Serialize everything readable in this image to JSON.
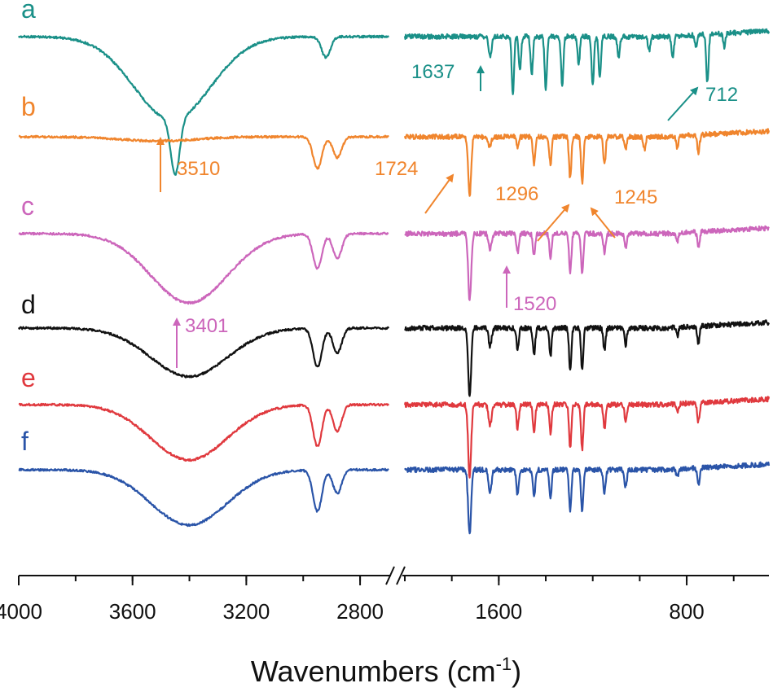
{
  "chart_data": {
    "type": "line",
    "xlabel": "Wavenumbers (cm",
    "xlabel_sup": "-1",
    "xlabel_close": ")",
    "x_reversed": true,
    "axis_break": true,
    "xlim_left_segment": [
      4000,
      2700
    ],
    "xlim_right_segment": [
      2000,
      450
    ],
    "x_ticks": [
      {
        "value": 4000,
        "label": "4000"
      },
      {
        "value": 3600,
        "label": "3600"
      },
      {
        "value": 3200,
        "label": "3200"
      },
      {
        "value": 2800,
        "label": "2800"
      },
      {
        "value": 1600,
        "label": "1600"
      },
      {
        "value": 800,
        "label": "800"
      }
    ],
    "grid": false,
    "series": [
      {
        "name": "a",
        "color": "#1a9088",
        "offset": 0,
        "broad_oh": [
          3460,
          6
        ],
        "ch_depth": 1.4,
        "peaks": [
          [
            3450,
            4,
            0.0
          ],
          [
            2920,
            1.5,
            0.0
          ],
          [
            1637,
            1.4,
            0.0
          ],
          [
            1540,
            4.2,
            0.0
          ],
          [
            1510,
            2.5,
            0.0
          ],
          [
            1460,
            2.8,
            0.0
          ],
          [
            1400,
            3.8,
            0.0
          ],
          [
            1330,
            3.5,
            0.0
          ],
          [
            1260,
            2.0,
            0.0
          ],
          [
            1200,
            3.5,
            0.0
          ],
          [
            1170,
            3.0,
            0.0
          ],
          [
            1090,
            1.5,
            0.0
          ],
          [
            960,
            1.0,
            0.0
          ],
          [
            860,
            1.6,
            0.0
          ],
          [
            760,
            1.0,
            0.0
          ],
          [
            712,
            3.5,
            0.0
          ],
          [
            640,
            1.0,
            0.0
          ]
        ]
      },
      {
        "name": "b",
        "color": "#f0852d",
        "offset": 0,
        "broad_oh": [
          3510,
          0.3
        ],
        "ch_depth": 2.3,
        "peaks": [
          [
            2950,
            2.3,
            0.0
          ],
          [
            2880,
            1.5,
            0.0
          ],
          [
            1724,
            4.3,
            0.0
          ],
          [
            1640,
            0.8,
            0.0
          ],
          [
            1520,
            0.8,
            0.0
          ],
          [
            1450,
            2.0,
            0.0
          ],
          [
            1380,
            2.0,
            0.0
          ],
          [
            1296,
            3.0,
            0.0
          ],
          [
            1245,
            3.3,
            0.0
          ],
          [
            1150,
            2.0,
            0.0
          ],
          [
            1060,
            1.0,
            0.0
          ],
          [
            980,
            0.9,
            0.0
          ],
          [
            840,
            0.9,
            0.0
          ],
          [
            750,
            1.3,
            0.0
          ]
        ]
      },
      {
        "name": "c",
        "color": "#cc66bb",
        "offset": 0,
        "broad_oh": [
          3401,
          5
        ],
        "ch_depth": 2.8,
        "peaks": [
          [
            2950,
            2.5,
            0.0
          ],
          [
            2880,
            1.8,
            0.0
          ],
          [
            1724,
            4.8,
            0.0
          ],
          [
            1637,
            1.2,
            0.0
          ],
          [
            1520,
            1.4,
            0.0
          ],
          [
            1450,
            1.6,
            0.0
          ],
          [
            1380,
            1.7,
            0.0
          ],
          [
            1296,
            2.8,
            0.0
          ],
          [
            1245,
            2.8,
            0.0
          ],
          [
            1150,
            1.4,
            0.0
          ],
          [
            1060,
            1.0,
            0.0
          ],
          [
            840,
            0.6,
            0.0
          ],
          [
            750,
            1.1,
            0.0
          ]
        ]
      },
      {
        "name": "d",
        "color": "#111111",
        "offset": 0,
        "broad_oh": [
          3401,
          3.5
        ],
        "ch_depth": 3.0,
        "peaks": [
          [
            2950,
            2.8,
            0.0
          ],
          [
            2880,
            1.8,
            0.0
          ],
          [
            1724,
            5.0,
            0.0
          ],
          [
            1637,
            1.3,
            0.0
          ],
          [
            1520,
            1.5,
            0.0
          ],
          [
            1450,
            2.0,
            0.0
          ],
          [
            1380,
            2.0,
            0.0
          ],
          [
            1296,
            3.0,
            0.0
          ],
          [
            1245,
            3.1,
            0.0
          ],
          [
            1150,
            1.6,
            0.0
          ],
          [
            1060,
            1.2,
            0.0
          ],
          [
            840,
            0.6,
            0.0
          ],
          [
            750,
            1.2,
            0.0
          ]
        ]
      },
      {
        "name": "e",
        "color": "#e0393e",
        "offset": 0,
        "broad_oh": [
          3401,
          4.0
        ],
        "ch_depth": 3.2,
        "peaks": [
          [
            2950,
            3.0,
            0.0
          ],
          [
            2880,
            1.9,
            0.0
          ],
          [
            1724,
            5.2,
            0.0
          ],
          [
            1637,
            1.5,
            0.0
          ],
          [
            1520,
            1.7,
            0.0
          ],
          [
            1450,
            2.0,
            0.0
          ],
          [
            1380,
            2.0,
            0.0
          ],
          [
            1296,
            3.1,
            0.0
          ],
          [
            1245,
            3.2,
            0.0
          ],
          [
            1150,
            1.7,
            0.0
          ],
          [
            1060,
            1.2,
            0.0
          ],
          [
            840,
            0.6,
            0.0
          ],
          [
            750,
            1.4,
            0.0
          ]
        ]
      },
      {
        "name": "f",
        "color": "#2a54a8",
        "offset": 0,
        "broad_oh": [
          3401,
          4.0
        ],
        "ch_depth": 3.0,
        "peaks": [
          [
            2950,
            3.0,
            0.0
          ],
          [
            2880,
            1.7,
            0.0
          ],
          [
            1724,
            4.7,
            0.0
          ],
          [
            1637,
            1.7,
            0.0
          ],
          [
            1520,
            1.8,
            0.0
          ],
          [
            1450,
            2.0,
            0.0
          ],
          [
            1380,
            2.0,
            0.0
          ],
          [
            1296,
            3.0,
            0.0
          ],
          [
            1245,
            3.0,
            0.0
          ],
          [
            1150,
            1.7,
            0.0
          ],
          [
            1060,
            1.3,
            0.0
          ],
          [
            840,
            0.6,
            0.0
          ],
          [
            750,
            1.3,
            0.0
          ]
        ]
      }
    ],
    "annotations": [
      {
        "text": "1637",
        "series": "a",
        "color": "#1a9088",
        "x": 1637
      },
      {
        "text": "712",
        "series": "a",
        "color": "#1a9088",
        "x": 712
      },
      {
        "text": "3510",
        "series": "b",
        "color": "#f0852d",
        "x": 3510
      },
      {
        "text": "1724",
        "series": "b",
        "color": "#f0852d",
        "x": 1724
      },
      {
        "text": "1296",
        "series": "b",
        "color": "#f0852d",
        "x": 1296
      },
      {
        "text": "1245",
        "series": "b",
        "color": "#f0852d",
        "x": 1245
      },
      {
        "text": "3401",
        "series": "c",
        "color": "#cc66bb",
        "x": 3401
      },
      {
        "text": "1520",
        "series": "c",
        "color": "#cc66bb",
        "x": 1520
      }
    ]
  }
}
